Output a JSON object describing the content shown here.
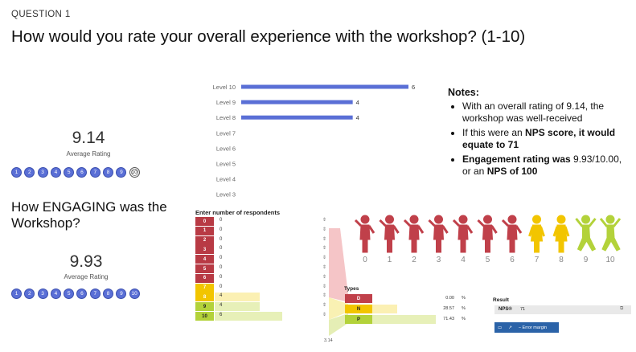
{
  "question": {
    "label": "QUESTION 1",
    "title": "How would you rate your overall experience with the workshop? (1-10)"
  },
  "rating1": {
    "value": "9.14",
    "label": "Average Rating",
    "scale": [
      "1",
      "2",
      "3",
      "4",
      "5",
      "6",
      "7",
      "8",
      "9",
      "10"
    ]
  },
  "question2": {
    "title": "How ENGAGING was the Workshop?"
  },
  "rating2": {
    "value": "9.93",
    "label": "Average Rating",
    "scale": [
      "1",
      "2",
      "3",
      "4",
      "5",
      "6",
      "7",
      "8",
      "9",
      "10"
    ]
  },
  "notes": {
    "heading": "Notes:",
    "item1": "With an overall rating of 9.14, the workshop was well-received",
    "item2_pre": "If this were an ",
    "item2_bold": "NPS score, it would equate to 71",
    "item3_bold1": "Engagement rating was",
    "item3_mid": " 9.93/10.00, or an ",
    "item3_bold2": "NPS of 100"
  },
  "chart_data": {
    "type": "bar",
    "orientation": "horizontal",
    "categories": [
      "Level 10",
      "Level 9",
      "Level 8",
      "Level 7",
      "Level 6",
      "Level 5",
      "Level 4",
      "Level 3"
    ],
    "values": [
      6,
      4,
      4,
      0,
      0,
      0,
      0,
      0
    ],
    "data_labels": [
      "6",
      "4",
      "4",
      "",
      "",
      "",
      "",
      ""
    ],
    "xlim": [
      0,
      6
    ],
    "grid": false,
    "bar_color": "#5a6fd6"
  },
  "calculator": {
    "title": "Enter number of respondents",
    "rows": [
      {
        "n": "0",
        "v": "0"
      },
      {
        "n": "1",
        "v": "0"
      },
      {
        "n": "2",
        "v": "0"
      },
      {
        "n": "3",
        "v": "0"
      },
      {
        "n": "4",
        "v": "0"
      },
      {
        "n": "5",
        "v": "0"
      },
      {
        "n": "6",
        "v": "0"
      },
      {
        "n": "7",
        "v": "0"
      },
      {
        "n": "8",
        "v": "4"
      },
      {
        "n": "9",
        "v": "4"
      },
      {
        "n": "10",
        "v": "6"
      }
    ],
    "types_title": "Types",
    "types": [
      {
        "key": "D",
        "value": "0.00",
        "unit": "%",
        "color": "#c0404a"
      },
      {
        "key": "N",
        "value": "28.57",
        "unit": "%",
        "color": "#f2c500"
      },
      {
        "key": "P",
        "value": "71.43",
        "unit": "%",
        "color": "#b3d23a"
      }
    ],
    "result_title": "Result",
    "result_key": "NPS®",
    "result_value": "71",
    "margin_label": "− Error margin",
    "below": "3.14"
  },
  "figures": {
    "numbers": [
      "0",
      "1",
      "2",
      "3",
      "4",
      "5",
      "6",
      "7",
      "8",
      "9",
      "10"
    ],
    "colors": {
      "detractor": "#c0404a",
      "passive": "#f2c500",
      "promoter": "#b3d23a"
    }
  }
}
